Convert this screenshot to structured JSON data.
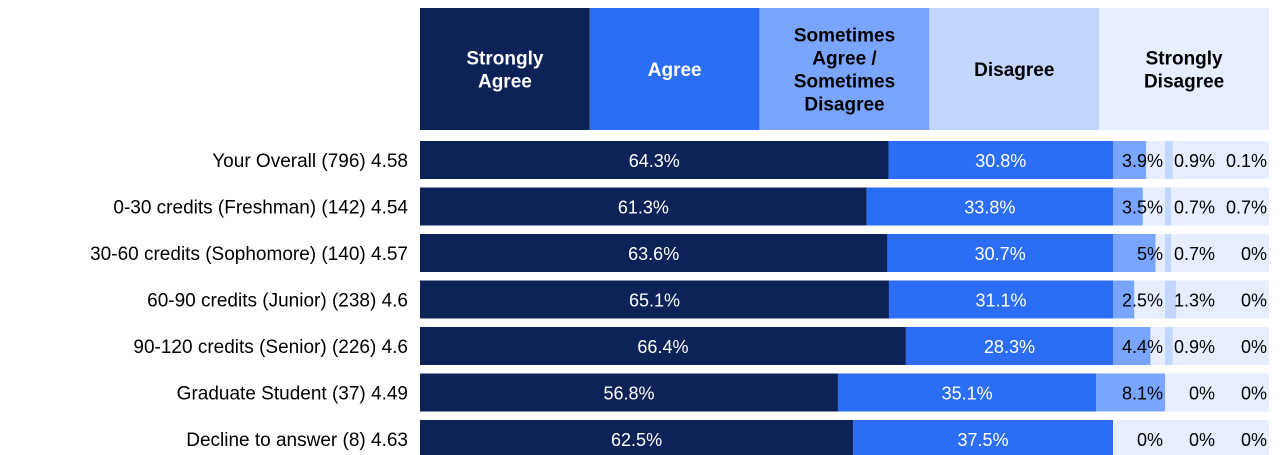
{
  "chart_data": {
    "type": "bar",
    "orientation": "horizontal",
    "stacked": true,
    "xlim": [
      0,
      100
    ],
    "grid": false,
    "legend_placement": "top",
    "categories": [
      "Your Overall (796) 4.58",
      "0-30 credits (Freshman) (142) 4.54",
      "30-60 credits (Sophomore) (140) 4.57",
      "60-90 credits (Junior) (238) 4.6",
      "90-120 credits (Senior) (226) 4.6",
      "Graduate Student (37) 4.49",
      "Decline to answer (8) 4.63"
    ],
    "series": [
      {
        "name": "Strongly Agree",
        "color": "#0d2358",
        "text_color": "#ffffff",
        "values": [
          64.3,
          61.3,
          63.6,
          65.1,
          66.4,
          56.8,
          62.5
        ],
        "labels": [
          "64.3%",
          "61.3%",
          "63.6%",
          "65.1%",
          "66.4%",
          "56.8%",
          "62.5%"
        ]
      },
      {
        "name": "Agree",
        "color": "#2b6ef5",
        "text_color": "#ffffff",
        "values": [
          30.8,
          33.8,
          30.7,
          31.1,
          28.3,
          35.1,
          37.5
        ],
        "labels": [
          "30.8%",
          "33.8%",
          "30.7%",
          "31.1%",
          "28.3%",
          "35.1%",
          "37.5%"
        ]
      },
      {
        "name": "Sometimes Agree / Sometimes Disagree",
        "color": "#7aa5ff",
        "text_color": "#000000",
        "values": [
          3.9,
          3.5,
          5,
          2.5,
          4.4,
          8.1,
          0
        ],
        "labels": [
          "3.9%",
          "3.5%",
          "5%",
          "2.5%",
          "4.4%",
          "8.1%",
          "0%"
        ]
      },
      {
        "name": "Disagree",
        "color": "#c3d6ff",
        "text_color": "#000000",
        "values": [
          0.9,
          0.7,
          0.7,
          1.3,
          0.9,
          0,
          0
        ],
        "labels": [
          "0.9%",
          "0.7%",
          "0.7%",
          "1.3%",
          "0.9%",
          "0%",
          "0%"
        ]
      },
      {
        "name": "Strongly Disagree",
        "color": "#e6eeff",
        "text_color": "#000000",
        "values": [
          0.1,
          0.7,
          0,
          0,
          0,
          0,
          0
        ],
        "labels": [
          "0.1%",
          "0.7%",
          "0%",
          "0%",
          "0%",
          "0%",
          "0%"
        ]
      }
    ]
  }
}
